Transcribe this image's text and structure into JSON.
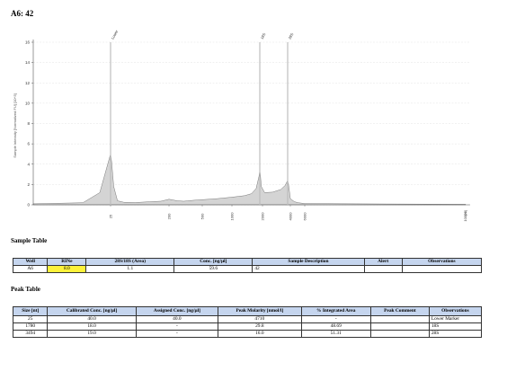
{
  "page": {
    "title": "A6: 42"
  },
  "chart_data": {
    "type": "area",
    "title": "",
    "xlabel": "",
    "ylabel": "Sample Intensity [Normalized FU]  [10^3]",
    "ylim": [
      0,
      16
    ],
    "yticks": [
      "0",
      "2",
      "4",
      "6",
      "8",
      "10",
      "12",
      "14",
      "16"
    ],
    "x_axis_label_right": "[nt]",
    "x_ticks": [
      "25",
      "200",
      "500",
      "1000",
      "2000",
      "4000",
      "6000"
    ],
    "x_ticks_right": "10000",
    "grid": true,
    "peaks": [
      {
        "label": "Lower",
        "size_nt": 25,
        "height": 5.0
      },
      {
        "label": "18S",
        "size_nt": 1780,
        "height": 3.4
      },
      {
        "label": "28S",
        "size_nt": 3494,
        "height": 2.4
      }
    ],
    "x_nt": [
      10,
      18,
      22,
      24,
      25,
      26,
      28,
      32,
      40,
      60,
      100,
      150,
      200,
      250,
      300,
      400,
      500,
      700,
      1000,
      1300,
      1500,
      1650,
      1750,
      1780,
      1820,
      1900,
      2100,
      2500,
      3000,
      3300,
      3494,
      3700,
      4000,
      4500,
      5000,
      6000,
      8000,
      10000
    ],
    "y": [
      0.1,
      0.2,
      1.2,
      3.8,
      5.0,
      4.2,
      1.8,
      0.4,
      0.25,
      0.22,
      0.3,
      0.35,
      0.55,
      0.4,
      0.35,
      0.45,
      0.5,
      0.6,
      0.75,
      0.9,
      1.1,
      1.6,
      2.8,
      3.4,
      3.0,
      1.8,
      1.2,
      1.25,
      1.5,
      1.9,
      2.4,
      1.8,
      0.6,
      0.3,
      0.2,
      0.12,
      0.08,
      0.05
    ]
  },
  "sample_table": {
    "heading": "Sample Table",
    "headers": [
      "Well",
      "RINe",
      "28S/18S (Area)",
      "Conc. [ng/µl]",
      "Sample Description",
      "Alert",
      "Observations"
    ],
    "rows": [
      [
        "A6",
        "8.0",
        "1.1",
        "59.6",
        "42",
        "",
        ""
      ]
    ]
  },
  "peak_table": {
    "heading": "Peak Table",
    "headers": [
      "Size [nt]",
      "Calibrated Conc. [ng/µl]",
      "Assigned Conc. [ng/µl]",
      "Peak Molarity [nmol/l]",
      "% Integrated Area",
      "Peak Comment",
      "Observations"
    ],
    "rows": [
      [
        "25",
        "40.0",
        "40.0",
        "4710",
        "-",
        "",
        "Lower Marker"
      ],
      [
        "1780",
        "18.0",
        "-",
        "29.8",
        "48.69",
        "",
        "18S"
      ],
      [
        "3494",
        "19.0",
        "-",
        "16.0",
        "51.31",
        "",
        "28S"
      ]
    ]
  },
  "colors": {
    "header_bg": "#c5d5ee",
    "rine_highlight": "#fdf23a",
    "area_fill": "#d4d4d4",
    "peak_line": "#bdbdbd"
  }
}
